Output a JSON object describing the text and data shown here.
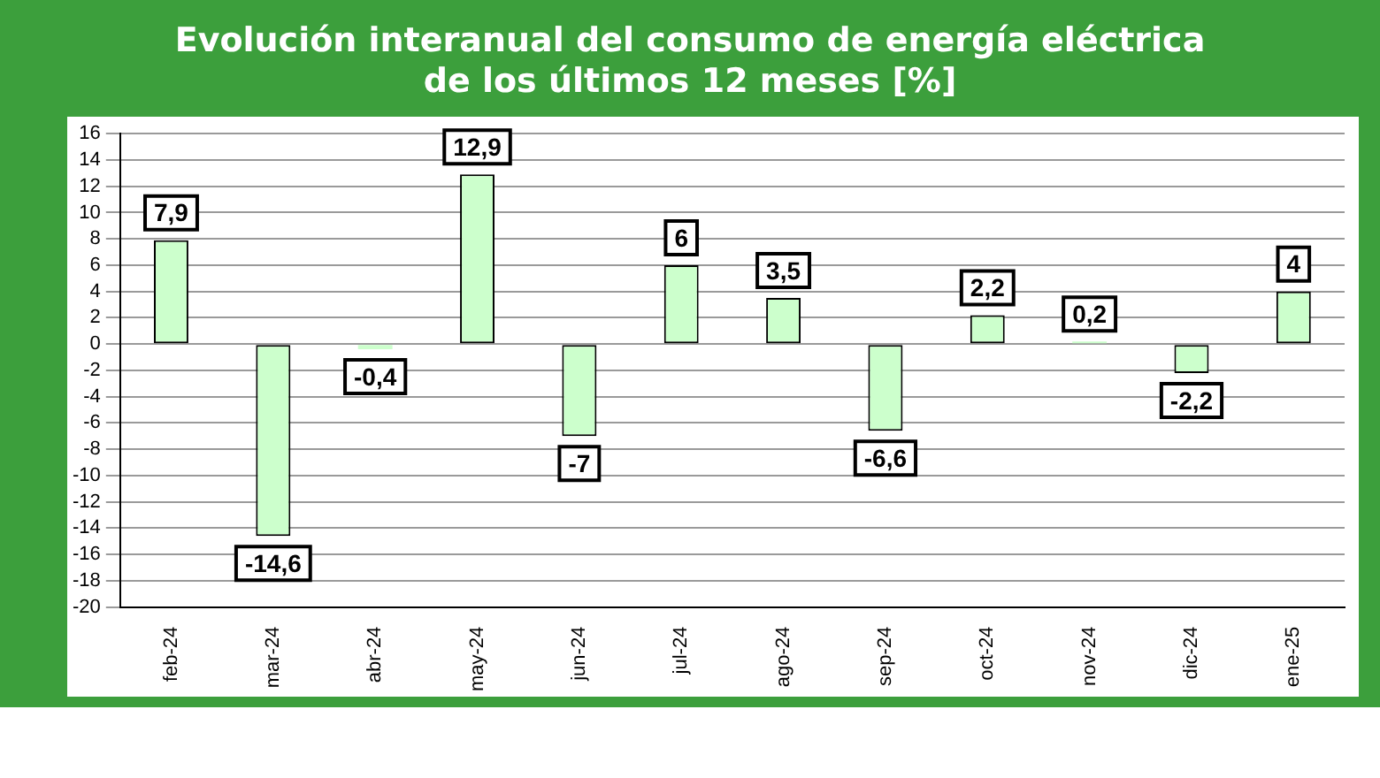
{
  "chart_data": {
    "type": "bar",
    "title": "Evolución interanual del consumo  de energía eléctrica\nde los últimos 12 meses [%]",
    "categories": [
      "feb-24",
      "mar-24",
      "abr-24",
      "may-24",
      "jun-24",
      "jul-24",
      "ago-24",
      "sep-24",
      "oct-24",
      "nov-24",
      "dic-24",
      "ene-25"
    ],
    "values": [
      7.9,
      -14.6,
      -0.4,
      12.9,
      -7,
      6,
      3.5,
      -6.6,
      2.2,
      0.2,
      -2.2,
      4
    ],
    "value_labels": [
      "7,9",
      "-14,6",
      "-0,4",
      "12,9",
      "-7",
      "6",
      "3,5",
      "-6,6",
      "2,2",
      "0,2",
      "-2,2",
      "4"
    ],
    "color": "#ccffcc",
    "ylim": [
      -20,
      16
    ],
    "yticks": [
      -20,
      -18,
      -16,
      -14,
      -12,
      -10,
      -8,
      -6,
      -4,
      -2,
      0,
      2,
      4,
      6,
      8,
      10,
      12,
      14,
      16
    ],
    "grid": "y",
    "legend": false
  }
}
